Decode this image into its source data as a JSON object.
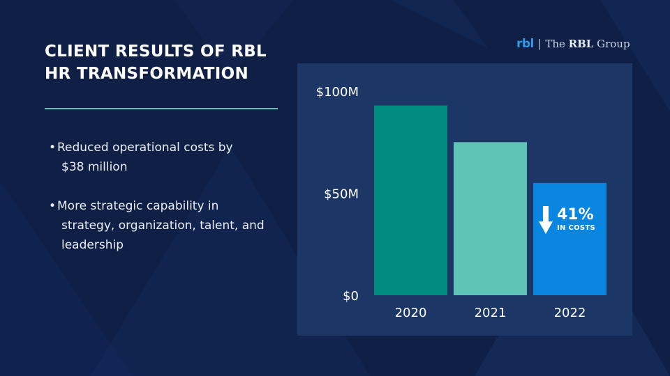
{
  "slide": {
    "title": "CLIENT RESULTS OF RBL HR TRANSFORMATION",
    "bullets": [
      {
        "line1": "Reduced operational costs by",
        "line2": "$38 million",
        "line3": ""
      },
      {
        "line1": "More strategic capability in",
        "line2": "strategy, organization, talent, and",
        "line3": "leadership"
      }
    ],
    "bullet_symbol": "•"
  },
  "brand": {
    "mark": "rbl",
    "separator": "|",
    "name_prefix": "The ",
    "name_bold": "RBL",
    "name_suffix": " Group"
  },
  "callout": {
    "percent": "41%",
    "label": "IN COSTS",
    "icon": "down-arrow-icon"
  },
  "chart_data": {
    "type": "bar",
    "categories": [
      "2020",
      "2021",
      "2022"
    ],
    "values": [
      93,
      75,
      55
    ],
    "ylim": [
      0,
      100
    ],
    "yticks": [
      {
        "value": 0,
        "label": "$0"
      },
      {
        "value": 50,
        "label": "$50M"
      },
      {
        "value": 100,
        "label": "$100M"
      }
    ],
    "colors": [
      "#008b81",
      "#5fc4b6",
      "#0b86e0"
    ],
    "grid": false,
    "title": "",
    "xlabel": "",
    "ylabel": ""
  }
}
